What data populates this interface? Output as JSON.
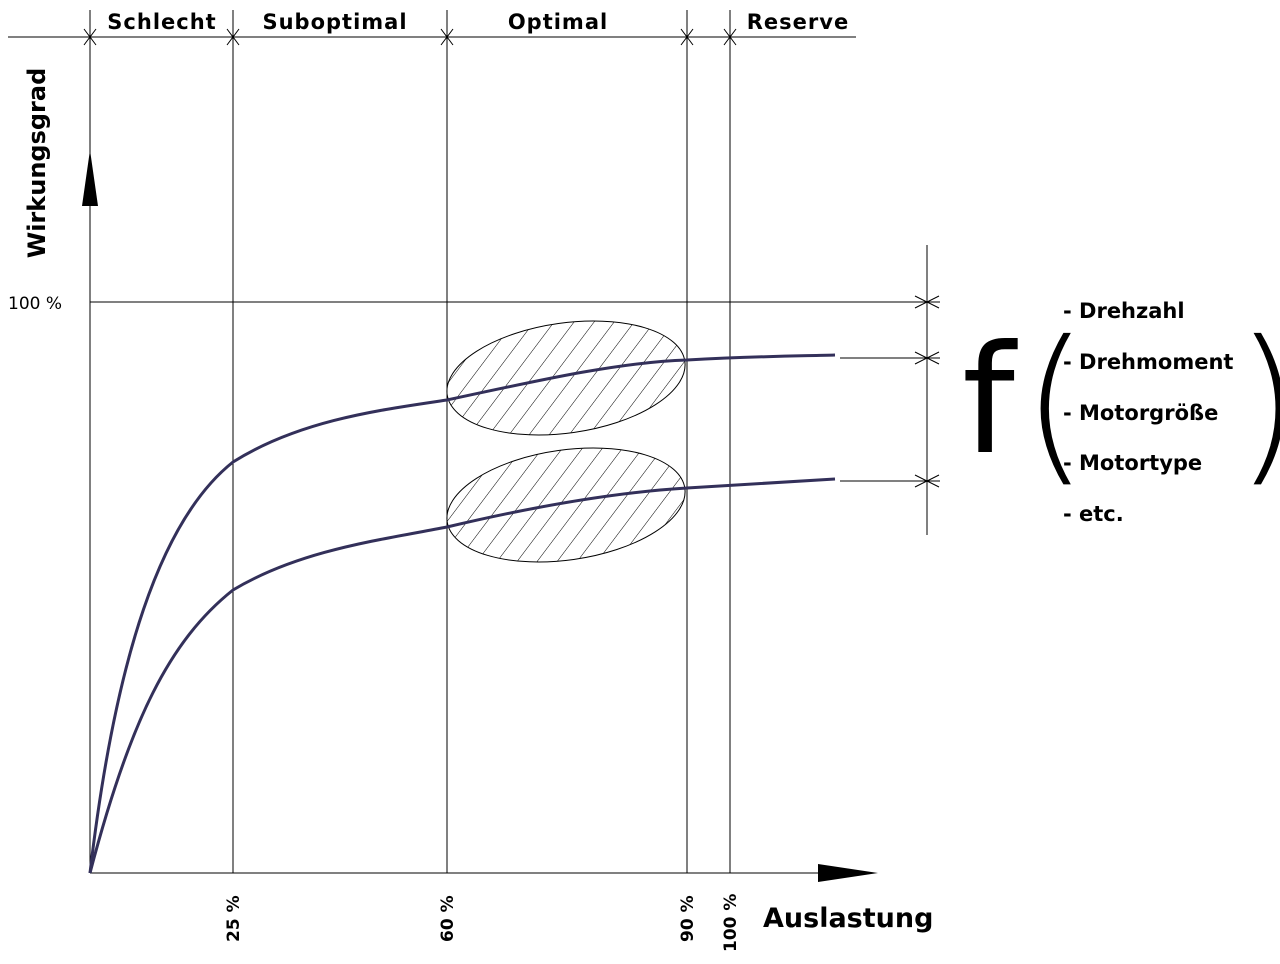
{
  "zones": [
    "Schlecht",
    "Suboptimal",
    "Optimal",
    "Reserve"
  ],
  "y_axis_label": "Wirkungsgrad",
  "y_tick": "100 %",
  "x_ticks": [
    "25 %",
    "60 %",
    "90 %",
    "100 %"
  ],
  "x_axis_label": "Auslastung",
  "function": {
    "symbol": "f",
    "open": "(",
    "close": ")"
  },
  "factors": [
    "- Drehzahl",
    "- Drehmoment",
    "- Motorgröße",
    "- Motortype",
    "- etc."
  ]
}
